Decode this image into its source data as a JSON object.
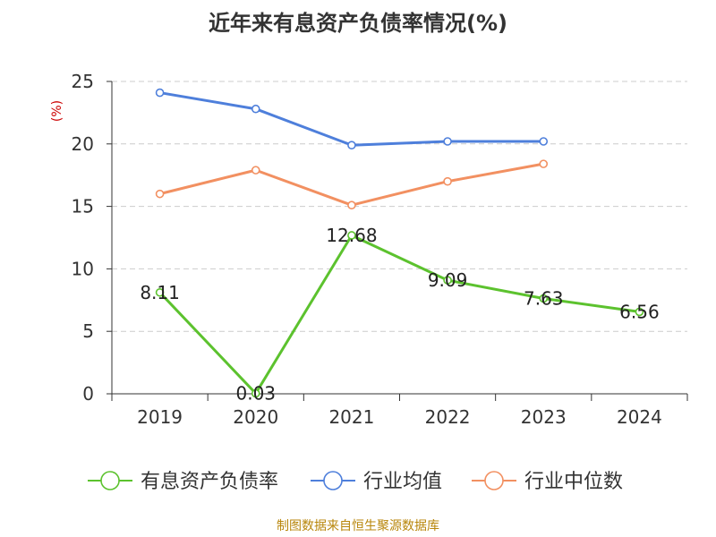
{
  "page": {
    "title": "近年来有息资产负债率情况(%)",
    "source": "制图数据来自恒生聚源数据库"
  },
  "colors": {
    "source_text": "#b8860b",
    "axis": "#333333",
    "grid": "#cccccc",
    "ylabel": "#cc0000"
  },
  "chart_data": {
    "type": "line",
    "title": "近年来有息资产负债率情况(%)",
    "ylabel": "(%)",
    "xlabel": "",
    "categories": [
      "2019",
      "2020",
      "2021",
      "2022",
      "2023",
      "2024"
    ],
    "yticks": [
      0,
      5,
      10,
      15,
      20,
      25
    ],
    "ylim": [
      0,
      25
    ],
    "grid": "horizontal dashed",
    "legend_position": "bottom",
    "series": [
      {
        "name": "有息资产负债率",
        "color": "#5cc22e",
        "values": [
          8.11,
          0.03,
          12.68,
          9.09,
          7.63,
          6.56
        ],
        "labels": [
          "8.11",
          "0.03",
          "12.68",
          "9.09",
          "7.63",
          "6.56"
        ]
      },
      {
        "name": "行业均值",
        "color": "#4e7fdb",
        "values": [
          24.1,
          22.8,
          19.9,
          20.2,
          20.2,
          null
        ]
      },
      {
        "name": "行业中位数",
        "color": "#f29061",
        "values": [
          16.0,
          17.9,
          15.1,
          17.0,
          18.4,
          null
        ]
      }
    ]
  }
}
